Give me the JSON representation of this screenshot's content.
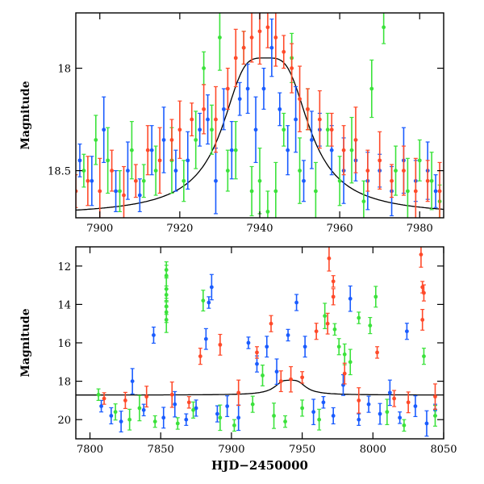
{
  "chart_data": [
    {
      "type": "scatter",
      "panel": "top",
      "title": "",
      "xlabel": "",
      "ylabel": "Magnitude",
      "xlim": [
        7894,
        7986
      ],
      "ylim": [
        18.73,
        17.73
      ],
      "y_inverted": true,
      "xticks": [
        7900,
        7920,
        7940,
        7960,
        7980
      ],
      "xtick_labels": [
        "7900",
        "7920",
        "7940",
        "7960",
        "7980"
      ],
      "yticks": [
        18,
        18.5
      ],
      "ytick_labels": [
        "18",
        "18.5"
      ],
      "grid": false,
      "legend": "none",
      "model_curve": {
        "color": "#000000",
        "baseline_mag": 18.72,
        "peak_time": 7941.5,
        "peak_mag": 17.95,
        "width": 9
      },
      "series": [
        {
          "color": "#1a5cff",
          "values": [
            [
              7895,
              18.45
            ],
            [
              7898,
              18.55
            ],
            [
              7901,
              18.3
            ],
            [
              7904,
              18.6
            ],
            [
              7907,
              18.5
            ],
            [
              7910,
              18.62
            ],
            [
              7913,
              18.4
            ],
            [
              7916,
              18.35
            ],
            [
              7919,
              18.5
            ],
            [
              7922,
              18.45
            ],
            [
              7925,
              18.3
            ],
            [
              7927,
              18.25
            ],
            [
              7929,
              18.55
            ],
            [
              7931,
              18.2
            ],
            [
              7933,
              18.4
            ],
            [
              7935,
              18.15
            ],
            [
              7937,
              18.1
            ],
            [
              7939,
              18.3
            ],
            [
              7941,
              18.1
            ],
            [
              7943,
              17.9
            ],
            [
              7945,
              18.2
            ],
            [
              7947,
              18.4
            ],
            [
              7949,
              18.25
            ],
            [
              7951,
              18.55
            ],
            [
              7953,
              18.35
            ],
            [
              7955,
              18.3
            ],
            [
              7958,
              18.4
            ],
            [
              7961,
              18.5
            ],
            [
              7964,
              18.45
            ],
            [
              7967,
              18.55
            ],
            [
              7970,
              18.5
            ],
            [
              7973,
              18.6
            ],
            [
              7976,
              18.45
            ],
            [
              7979,
              18.55
            ],
            [
              7982,
              18.5
            ],
            [
              7984,
              18.6
            ]
          ]
        },
        {
          "color": "#3be23b",
          "values": [
            [
              7896,
              18.5
            ],
            [
              7899,
              18.35
            ],
            [
              7902,
              18.45
            ],
            [
              7905,
              18.6
            ],
            [
              7908,
              18.4
            ],
            [
              7911,
              18.55
            ],
            [
              7914,
              18.5
            ],
            [
              7918,
              18.45
            ],
            [
              7921,
              18.55
            ],
            [
              7924,
              18.35
            ],
            [
              7926,
              18.0
            ],
            [
              7928,
              18.3
            ],
            [
              7930,
              17.85
            ],
            [
              7932,
              18.5
            ],
            [
              7934,
              18.4
            ],
            [
              7936,
              17.9
            ],
            [
              7938,
              18.6
            ],
            [
              7940,
              18.55
            ],
            [
              7942,
              18.7
            ],
            [
              7944,
              18.6
            ],
            [
              7946,
              18.3
            ],
            [
              7948,
              17.95
            ],
            [
              7950,
              18.5
            ],
            [
              7952,
              18.2
            ],
            [
              7954,
              18.6
            ],
            [
              7957,
              18.3
            ],
            [
              7960,
              18.55
            ],
            [
              7963,
              18.4
            ],
            [
              7966,
              18.65
            ],
            [
              7968,
              18.1
            ],
            [
              7971,
              17.8
            ],
            [
              7974,
              18.5
            ],
            [
              7977,
              18.6
            ],
            [
              7980,
              18.45
            ],
            [
              7983,
              18.55
            ],
            [
              7985,
              18.65
            ]
          ]
        },
        {
          "color": "#ff4a2a",
          "values": [
            [
              7894,
              18.6
            ],
            [
              7897,
              18.55
            ],
            [
              7900,
              18.6
            ],
            [
              7903,
              18.5
            ],
            [
              7906,
              18.62
            ],
            [
              7909,
              18.55
            ],
            [
              7912,
              18.4
            ],
            [
              7915,
              18.45
            ],
            [
              7918,
              18.35
            ],
            [
              7920,
              18.3
            ],
            [
              7923,
              18.25
            ],
            [
              7926,
              18.2
            ],
            [
              7929,
              18.25
            ],
            [
              7932,
              18.1
            ],
            [
              7934,
              17.95
            ],
            [
              7936,
              17.9
            ],
            [
              7938,
              17.85
            ],
            [
              7940,
              17.82
            ],
            [
              7942,
              17.8
            ],
            [
              7944,
              17.85
            ],
            [
              7946,
              17.92
            ],
            [
              7948,
              18.0
            ],
            [
              7950,
              18.15
            ],
            [
              7952,
              18.2
            ],
            [
              7955,
              18.25
            ],
            [
              7958,
              18.3
            ],
            [
              7961,
              18.4
            ],
            [
              7964,
              18.35
            ],
            [
              7967,
              18.5
            ],
            [
              7970,
              18.45
            ],
            [
              7973,
              18.55
            ],
            [
              7976,
              18.5
            ],
            [
              7979,
              18.6
            ],
            [
              7982,
              18.55
            ],
            [
              7985,
              18.6
            ]
          ]
        }
      ]
    },
    {
      "type": "scatter",
      "panel": "bottom",
      "title": "",
      "xlabel": "HJD−2450000",
      "ylabel": "Magnitude",
      "xlim": [
        7790,
        8050
      ],
      "ylim": [
        21,
        11
      ],
      "y_inverted": true,
      "xticks": [
        7800,
        7850,
        7900,
        7950,
        8000,
        8050
      ],
      "xtick_labels": [
        "7800",
        "7850",
        "7900",
        "7950",
        "8000",
        "8050"
      ],
      "yticks": [
        12,
        14,
        16,
        18,
        20
      ],
      "ytick_labels": [
        "12",
        "14",
        "16",
        "18",
        "20"
      ],
      "grid": false,
      "legend": "none",
      "model_curve": {
        "color": "#000000",
        "baseline_mag": 18.72,
        "peak_time": 7941.5,
        "peak_mag": 17.95,
        "width": 9
      },
      "series": [
        {
          "color": "#1a5cff",
          "values": [
            [
              7808,
              19.3
            ],
            [
              7815,
              19.8
            ],
            [
              7822,
              20.1
            ],
            [
              7830,
              18.0
            ],
            [
              7838,
              19.5
            ],
            [
              7845,
              15.6
            ],
            [
              7852,
              19.9
            ],
            [
              7860,
              19.2
            ],
            [
              7868,
              20.0
            ],
            [
              7875,
              19.4
            ],
            [
              7882,
              15.8
            ],
            [
              7886,
              13.1
            ],
            [
              7884,
              13.9
            ],
            [
              7890,
              19.7
            ],
            [
              7897,
              19.3
            ],
            [
              7905,
              19.9
            ],
            [
              7912,
              16.0
            ],
            [
              7918,
              17.1
            ],
            [
              7925,
              16.2
            ],
            [
              7932,
              17.5
            ],
            [
              7940,
              15.6
            ],
            [
              7946,
              13.9
            ],
            [
              7952,
              16.2
            ],
            [
              7958,
              19.6
            ],
            [
              7965,
              19.1
            ],
            [
              7972,
              19.8
            ],
            [
              7979,
              18.2
            ],
            [
              7984,
              13.7
            ],
            [
              7990,
              20.0
            ],
            [
              7997,
              19.2
            ],
            [
              8005,
              19.7
            ],
            [
              8012,
              18.6
            ],
            [
              8019,
              19.9
            ],
            [
              8024,
              15.4
            ],
            [
              8030,
              19.3
            ],
            [
              8038,
              20.2
            ],
            [
              8044,
              19.5
            ]
          ]
        },
        {
          "color": "#3be23b",
          "values": [
            [
              7806,
              18.7
            ],
            [
              7818,
              19.6
            ],
            [
              7828,
              20.0
            ],
            [
              7835,
              19.4
            ],
            [
              7846,
              20.1
            ],
            [
              7854,
              12.2
            ],
            [
              7854,
              12.5
            ],
            [
              7854,
              13.2
            ],
            [
              7854,
              13.5
            ],
            [
              7854,
              14.1
            ],
            [
              7854,
              14.4
            ],
            [
              7854,
              14.8
            ],
            [
              7862,
              20.2
            ],
            [
              7873,
              19.5
            ],
            [
              7880,
              13.8
            ],
            [
              7892,
              19.9
            ],
            [
              7902,
              20.3
            ],
            [
              7915,
              19.2
            ],
            [
              7922,
              17.7
            ],
            [
              7930,
              19.8
            ],
            [
              7938,
              20.1
            ],
            [
              7950,
              19.4
            ],
            [
              7962,
              20.0
            ],
            [
              7966,
              14.6
            ],
            [
              7973,
              15.3
            ],
            [
              7976,
              16.2
            ],
            [
              7980,
              16.6
            ],
            [
              7984,
              17.0
            ],
            [
              7990,
              14.7
            ],
            [
              7998,
              15.1
            ],
            [
              8002,
              13.6
            ],
            [
              8010,
              19.6
            ],
            [
              8022,
              20.3
            ],
            [
              8036,
              16.7
            ],
            [
              8044,
              19.8
            ]
          ]
        },
        {
          "color": "#ff4a2a",
          "values": [
            [
              7810,
              18.9
            ],
            [
              7825,
              19.0
            ],
            [
              7840,
              18.8
            ],
            [
              7858,
              18.7
            ],
            [
              7870,
              19.1
            ],
            [
              7878,
              16.7
            ],
            [
              7892,
              16.1
            ],
            [
              7905,
              18.6
            ],
            [
              7918,
              16.5
            ],
            [
              7928,
              15.0
            ],
            [
              7935,
              18.0
            ],
            [
              7942,
              17.9
            ],
            [
              7950,
              17.8
            ],
            [
              7960,
              15.4
            ],
            [
              7968,
              15.0
            ],
            [
              7969,
              11.6
            ],
            [
              7972,
              12.8
            ],
            [
              7972,
              13.6
            ],
            [
              7980,
              17.6
            ],
            [
              7990,
              19.0
            ],
            [
              8003,
              16.5
            ],
            [
              8015,
              18.9
            ],
            [
              8025,
              19.1
            ],
            [
              8034,
              11.4
            ],
            [
              8035,
              13.1
            ],
            [
              8036,
              13.4
            ],
            [
              8035,
              14.8
            ],
            [
              8044,
              18.8
            ]
          ]
        }
      ]
    }
  ]
}
